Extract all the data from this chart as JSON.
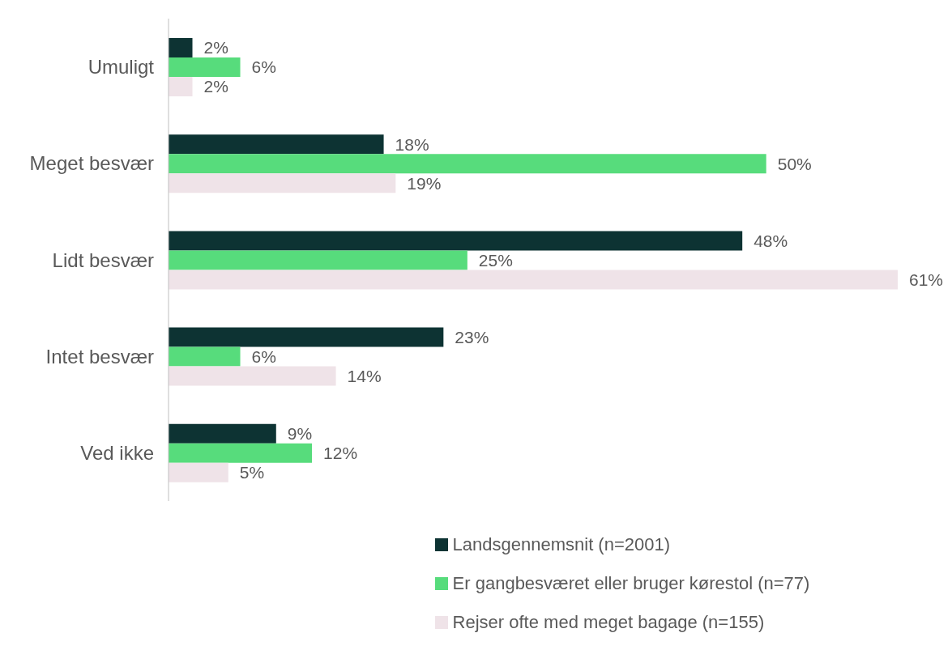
{
  "chart_data": {
    "type": "bar",
    "orientation": "horizontal",
    "categories": [
      "Umuligt",
      "Meget besvær",
      "Lidt besvær",
      "Intet besvær",
      "Ved ikke"
    ],
    "series": [
      {
        "name": "Landsgennemsnit (n=2001)",
        "color": "#0d3333",
        "values": [
          2,
          18,
          48,
          23,
          9
        ],
        "value_labels": [
          "2%",
          "18%",
          "48%",
          "23%",
          "9%"
        ]
      },
      {
        "name": "Er gangbesværet eller bruger kørestol (n=77)",
        "color": "#57dc7c",
        "values": [
          6,
          50,
          25,
          6,
          12
        ],
        "value_labels": [
          "6%",
          "50%",
          "25%",
          "6%",
          "12%"
        ]
      },
      {
        "name": "Rejser ofte med meget bagage (n=155)",
        "color": "#efe3e8",
        "values": [
          2,
          19,
          61,
          14,
          5
        ],
        "value_labels": [
          "2%",
          "19%",
          "61%",
          "14%",
          "5%"
        ]
      }
    ],
    "legend": "bottom",
    "tick_labels": "y"
  }
}
